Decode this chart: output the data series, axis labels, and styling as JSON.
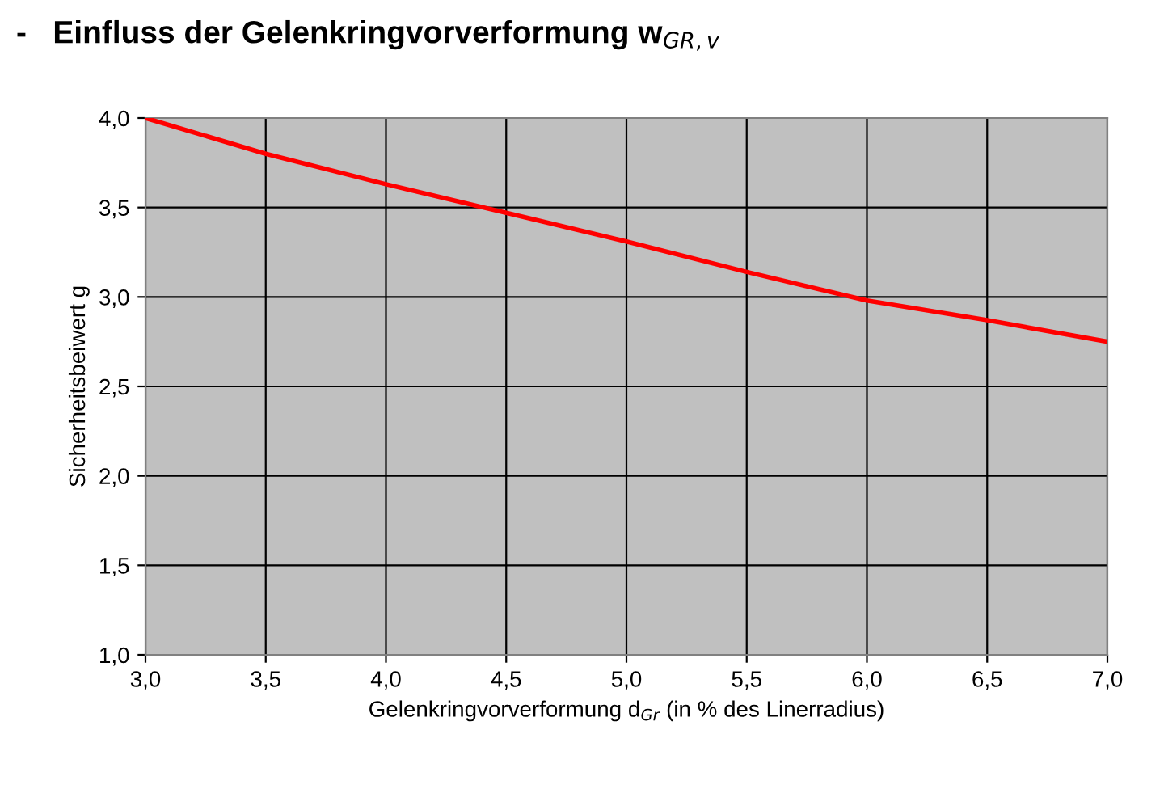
{
  "chart_data": {
    "type": "line",
    "title": "-   Einfluss der Gelenkringvorverformung w$_{GR,v}$",
    "xlabel": "Gelenkringvorverformung d$_{Gr}$ (in % des Linerradius)",
    "ylabel": "Sicherheitsbeiwert g",
    "x": [
      3.0,
      3.5,
      4.0,
      4.5,
      5.0,
      5.5,
      6.0,
      6.5,
      7.0
    ],
    "series": [
      {
        "color": "#ff0000",
        "values": [
          4.0,
          3.8,
          3.63,
          3.47,
          3.31,
          3.14,
          2.98,
          2.87,
          2.75
        ]
      }
    ],
    "xlim": [
      3.0,
      7.0
    ],
    "ylim": [
      1.0,
      4.0
    ],
    "xticks": [
      {
        "value": 3.0,
        "label": "3,0"
      },
      {
        "value": 3.5,
        "label": "3,5"
      },
      {
        "value": 4.0,
        "label": "4,0"
      },
      {
        "value": 4.5,
        "label": "4,5"
      },
      {
        "value": 5.0,
        "label": "5,0"
      },
      {
        "value": 5.5,
        "label": "5,5"
      },
      {
        "value": 6.0,
        "label": "6,0"
      },
      {
        "value": 6.5,
        "label": "6,5"
      },
      {
        "value": 7.0,
        "label": "7,0"
      }
    ],
    "yticks": [
      {
        "value": 1.0,
        "label": "1,0"
      },
      {
        "value": 1.5,
        "label": "1,5"
      },
      {
        "value": 2.0,
        "label": "2,0"
      },
      {
        "value": 2.5,
        "label": "2,5"
      },
      {
        "value": 3.0,
        "label": "3,0"
      },
      {
        "value": 3.5,
        "label": "3,5"
      },
      {
        "value": 4.0,
        "label": "4,0"
      }
    ],
    "grid": true,
    "marker": "none",
    "line_style": "solid",
    "legend": false
  }
}
